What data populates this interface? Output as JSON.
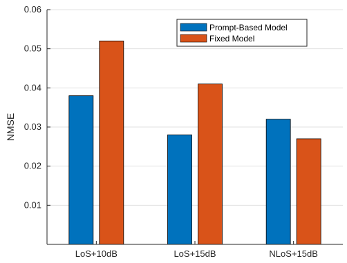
{
  "chart_data": {
    "type": "bar",
    "title": "",
    "xlabel": "",
    "ylabel": "NMSE",
    "categories": [
      "LoS+10dB",
      "LoS+15dB",
      "NLoS+15dB"
    ],
    "ylim": [
      0,
      0.06
    ],
    "yticks": [
      0.01,
      0.02,
      0.03,
      0.04,
      0.05,
      0.06
    ],
    "ytick_labels": [
      "0.01",
      "0.02",
      "0.03",
      "0.04",
      "0.05",
      "0.06"
    ],
    "grid": true,
    "legend_position": "top-right",
    "series": [
      {
        "name": "Prompt-Based Model",
        "color": "#0072BD",
        "values": [
          0.038,
          0.028,
          0.032
        ]
      },
      {
        "name": "Fixed Model",
        "color": "#D95319",
        "values": [
          0.052,
          0.041,
          0.027
        ]
      }
    ]
  }
}
